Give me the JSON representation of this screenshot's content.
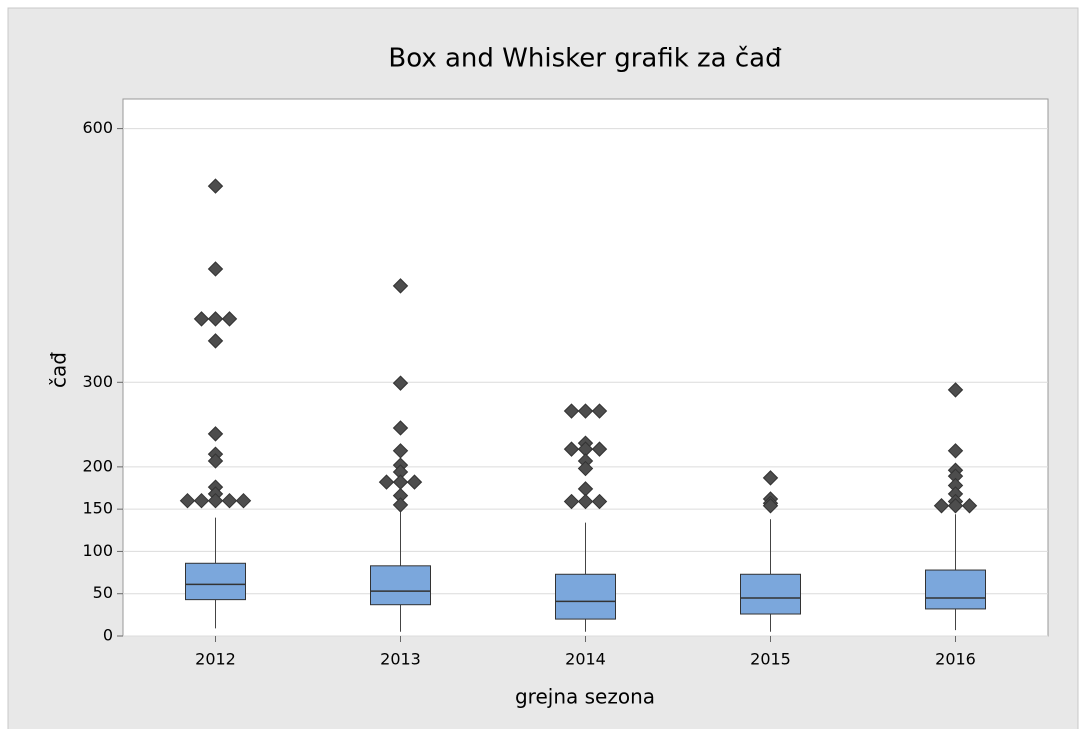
{
  "chart_data": {
    "type": "box",
    "title": "Box and Whisker grafik za čađ",
    "xlabel": "grejna sezona",
    "ylabel": "čađ",
    "categories": [
      "2012",
      "2013",
      "2014",
      "2015",
      "2016"
    ],
    "box_color": "#7ba7dc",
    "flier_color": "#4d4d4d",
    "ylim": [
      0,
      635
    ],
    "yticks": [
      0,
      50,
      100,
      150,
      200,
      300,
      600
    ],
    "grid": true,
    "boxes": [
      {
        "whislo": 9,
        "q1": 43,
        "med": 61,
        "q3": 86,
        "whishi": 140,
        "fliers": [
          532,
          434,
          375,
          375,
          375,
          349,
          239,
          215,
          207,
          176,
          168,
          160,
          160,
          160,
          160,
          160
        ]
      },
      {
        "whislo": 5,
        "q1": 37,
        "med": 53,
        "q3": 83,
        "whishi": 147,
        "fliers": [
          414,
          299,
          246,
          219,
          202,
          194,
          182,
          182,
          182,
          166,
          155
        ]
      },
      {
        "whislo": 5,
        "q1": 20,
        "med": 41,
        "q3": 73,
        "whishi": 134,
        "fliers": [
          266,
          266,
          266,
          228,
          221,
          221,
          221,
          207,
          198,
          174,
          159,
          159,
          159
        ]
      },
      {
        "whislo": 5,
        "q1": 26,
        "med": 45,
        "q3": 73,
        "whishi": 138,
        "fliers": [
          187,
          162,
          157,
          154
        ]
      },
      {
        "whislo": 7,
        "q1": 32,
        "med": 45,
        "q3": 78,
        "whishi": 144,
        "fliers": [
          291,
          219,
          196,
          189,
          178,
          168,
          159,
          154,
          154,
          154
        ]
      }
    ]
  }
}
